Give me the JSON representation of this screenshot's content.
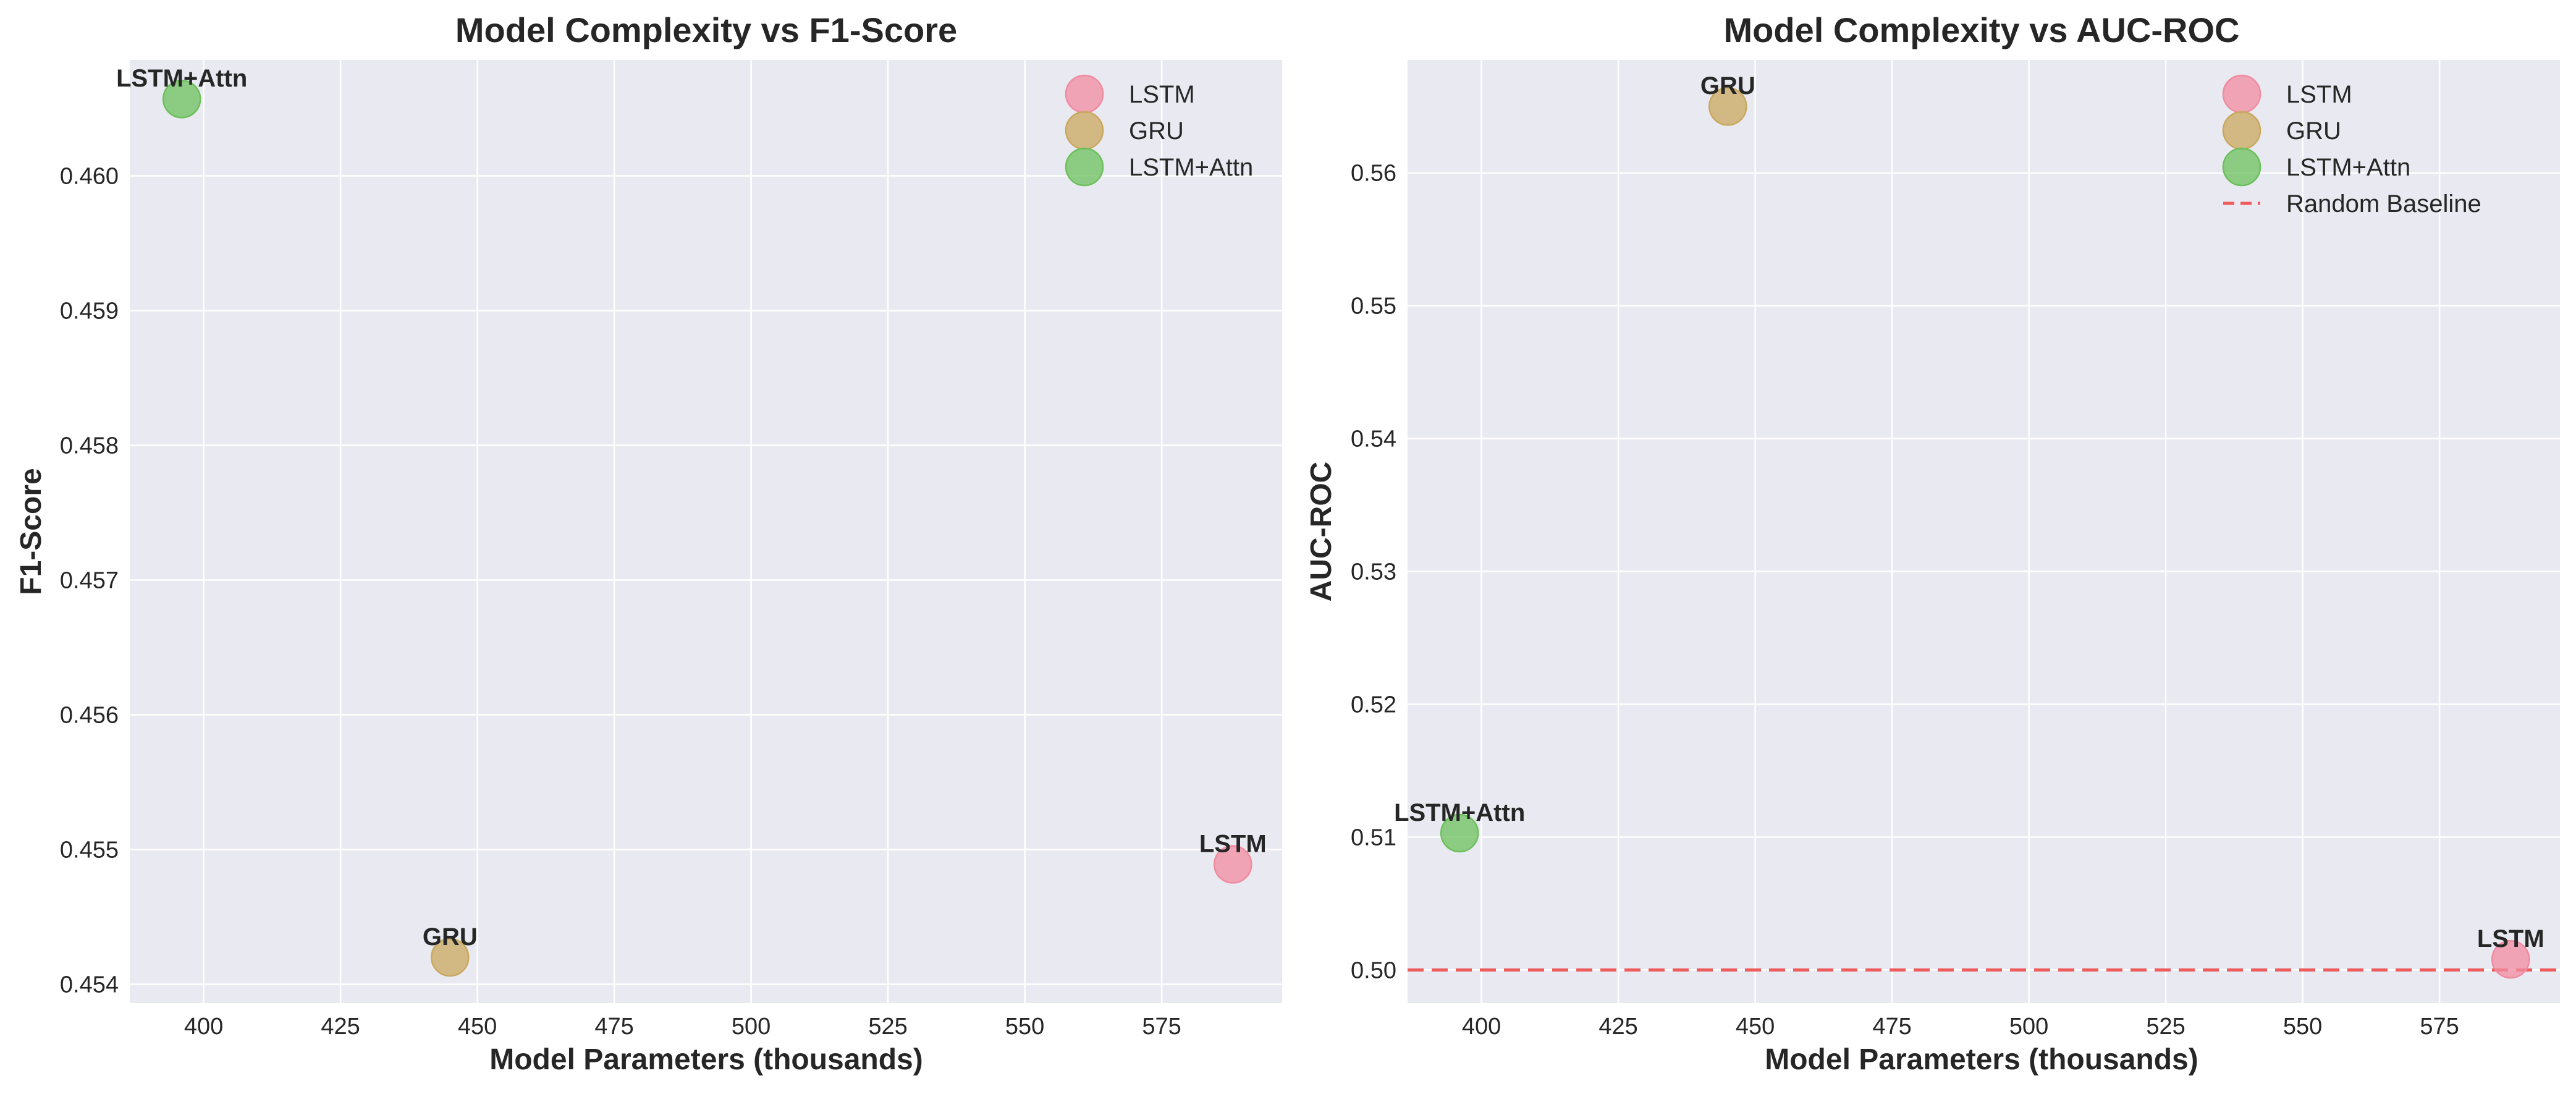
{
  "chart_data": [
    {
      "type": "scatter",
      "title": "Model Complexity vs F1-Score",
      "xlabel": "Model Parameters (thousands)",
      "ylabel": "F1-Score",
      "xlim": [
        386.5,
        597
      ],
      "ylim": [
        0.45386,
        0.46086
      ],
      "xticks": [
        "400",
        "425",
        "450",
        "475",
        "500",
        "525",
        "550",
        "575"
      ],
      "yticks": [
        "0.454",
        "0.455",
        "0.456",
        "0.457",
        "0.458",
        "0.459",
        "0.460"
      ],
      "grid": true,
      "legend": "top-right",
      "series": [
        {
          "name": "LSTM",
          "color": "#f08ba0",
          "x": [
            588
          ],
          "y": [
            0.45489
          ],
          "point_labels": [
            "LSTM"
          ]
        },
        {
          "name": "GRU",
          "color": "#c9a85e",
          "x": [
            445
          ],
          "y": [
            0.4542
          ],
          "point_labels": [
            "GRU"
          ]
        },
        {
          "name": "LSTM+Attn",
          "color": "#6cc05c",
          "x": [
            396
          ],
          "y": [
            0.46057
          ],
          "point_labels": [
            "LSTM+Attn"
          ]
        }
      ]
    },
    {
      "type": "scatter",
      "title": "Model Complexity vs AUC-ROC",
      "xlabel": "Model Parameters (thousands)",
      "ylabel": "AUC-ROC",
      "xlim": [
        386.5,
        597
      ],
      "ylim": [
        0.4975,
        0.5685
      ],
      "xticks": [
        "400",
        "425",
        "450",
        "475",
        "500",
        "525",
        "550",
        "575"
      ],
      "yticks": [
        "0.50",
        "0.51",
        "0.52",
        "0.53",
        "0.54",
        "0.55",
        "0.56"
      ],
      "grid": true,
      "legend": "top-right",
      "series": [
        {
          "name": "LSTM",
          "color": "#f08ba0",
          "x": [
            588
          ],
          "y": [
            0.5008
          ],
          "point_labels": [
            "LSTM"
          ]
        },
        {
          "name": "GRU",
          "color": "#c9a85e",
          "x": [
            445
          ],
          "y": [
            0.565
          ],
          "point_labels": [
            "GRU"
          ]
        },
        {
          "name": "LSTM+Attn",
          "color": "#6cc05c",
          "x": [
            396
          ],
          "y": [
            0.5103
          ],
          "point_labels": [
            "LSTM+Attn"
          ]
        }
      ],
      "reference_line": {
        "name": "Random Baseline",
        "y": 0.5,
        "color": "#ef5b5b",
        "style": "dashed"
      }
    }
  ]
}
